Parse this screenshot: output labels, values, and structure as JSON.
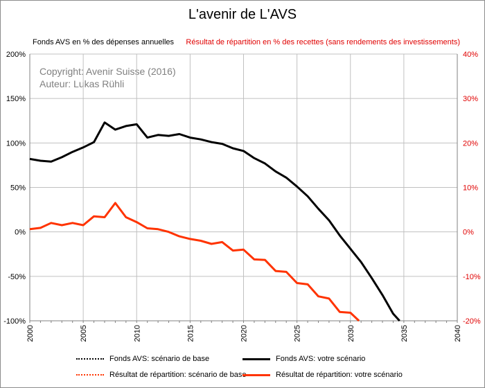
{
  "chart_data": {
    "type": "line",
    "title": "L'avenir de L'AVS",
    "ylabel_left": "Fonds AVS en % des dépenses annuelles",
    "ylabel_right": "Résultat de répartition en % des recettes (sans rendements des investissements)",
    "annotations": [
      "Copyright: Avenir Suisse (2016)",
      "Auteur: Lukas Rühli"
    ],
    "xlim": [
      2000,
      2040
    ],
    "ylim_left": [
      -100,
      200
    ],
    "ylim_right": [
      -20,
      40
    ],
    "x_ticks": [
      2000,
      2005,
      2010,
      2015,
      2020,
      2025,
      2030,
      2035,
      2040
    ],
    "y_ticks_left": [
      "200%",
      "150%",
      "100%",
      "50%",
      "0%",
      "-50%",
      "-100%"
    ],
    "y_ticks_right": [
      "40%",
      "30%",
      "20%",
      "10%",
      "0%",
      "-10%",
      "-20%"
    ],
    "grid": true,
    "legend_position": "bottom",
    "colors": {
      "fonds": "#000000",
      "repartition": "#ff3300",
      "right_axis": "#e00000",
      "grid": "#c0c0c0"
    },
    "series": [
      {
        "name": "Fonds AVS: scénario de base",
        "axis": "left",
        "style": "dotted",
        "color": "#000000",
        "x": [],
        "y": []
      },
      {
        "name": "Fonds AVS: votre scénario",
        "axis": "left",
        "style": "solid",
        "color": "#000000",
        "x": [
          2000,
          2001,
          2002,
          2003,
          2004,
          2005,
          2006,
          2007,
          2008,
          2009,
          2010,
          2011,
          2012,
          2013,
          2014,
          2015,
          2016,
          2017,
          2018,
          2019,
          2020,
          2021,
          2022,
          2023,
          2024,
          2025,
          2026,
          2027,
          2028,
          2029,
          2030,
          2031,
          2032,
          2033,
          2034,
          2034.6
        ],
        "y": [
          82,
          80,
          79,
          84,
          90,
          95,
          101,
          123,
          115,
          119,
          121,
          106,
          109,
          108,
          110,
          106,
          104,
          101,
          99,
          94,
          91,
          83,
          77,
          68,
          61,
          51,
          40,
          26,
          13,
          -4,
          -19,
          -34,
          -52,
          -71,
          -92,
          -100
        ]
      },
      {
        "name": "Résultat de répartition: scénario de base",
        "axis": "right",
        "style": "dotted",
        "color": "#ff3300",
        "x": [],
        "y": []
      },
      {
        "name": "Résultat de répartition: votre scénario",
        "axis": "right",
        "style": "solid",
        "color": "#ff3300",
        "x": [
          2000,
          2001,
          2002,
          2003,
          2004,
          2005,
          2006,
          2007,
          2008,
          2009,
          2010,
          2011,
          2012,
          2013,
          2014,
          2015,
          2016,
          2017,
          2018,
          2019,
          2020,
          2021,
          2022,
          2023,
          2024,
          2025,
          2026,
          2027,
          2028,
          2029,
          2030,
          2030.8
        ],
        "y": [
          0.6,
          0.9,
          2.0,
          1.5,
          2.0,
          1.5,
          3.5,
          3.3,
          6.5,
          3.3,
          2.2,
          0.8,
          0.6,
          0,
          -1.0,
          -1.6,
          -2.0,
          -2.7,
          -2.3,
          -4.2,
          -4.0,
          -6.2,
          -6.3,
          -8.8,
          -9.0,
          -11.5,
          -11.8,
          -14.5,
          -15.0,
          -18.0,
          -18.2,
          -20.0
        ]
      }
    ]
  }
}
